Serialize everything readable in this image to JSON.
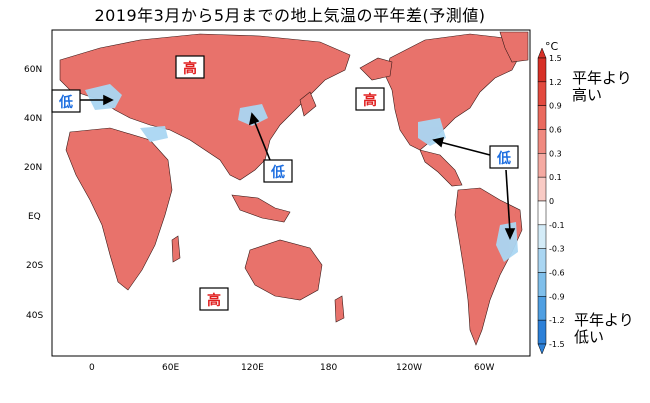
{
  "title": "2019年3月から5月までの地上気温の平年差(予測値)",
  "lat_labels": [
    "60N",
    "40N",
    "20N",
    "EQ",
    "20S",
    "40S"
  ],
  "lon_labels": [
    "0",
    "60E",
    "120E",
    "180",
    "120W",
    "60W"
  ],
  "colorbar": {
    "unit": "°C",
    "ticks": [
      "1.5",
      "1.2",
      "0.9",
      "0.6",
      "0.3",
      "0.1",
      "0",
      "-0.1",
      "-0.3",
      "-0.6",
      "-0.9",
      "-1.2",
      "-1.5"
    ],
    "colors": [
      "#d73027",
      "#e34a3f",
      "#ea6a5e",
      "#f08a80",
      "#f5aaa2",
      "#f9cbc5",
      "#ffffff",
      "#d4ecf8",
      "#aad6f2",
      "#7fbfeb",
      "#4f9fe2",
      "#2c80d8"
    ]
  },
  "annotations": {
    "high": "高",
    "low": "低"
  },
  "legend_text": {
    "above": [
      "平年より",
      "高い"
    ],
    "below": [
      "平年より",
      "低い"
    ]
  }
}
